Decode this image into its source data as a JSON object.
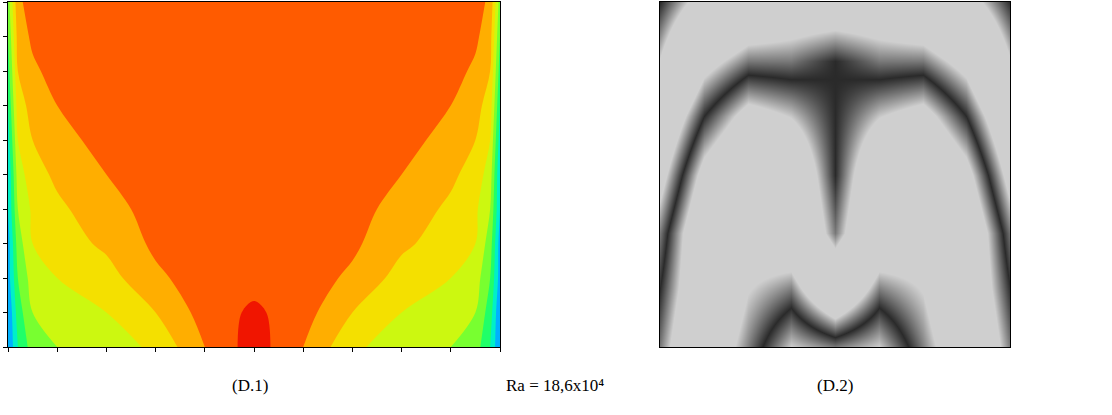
{
  "caption": "Ra = 18,6x10⁴",
  "chart_data": [
    {
      "type": "contour",
      "title": "(D.1)",
      "x": [
        0,
        0.02,
        0.05,
        0.1,
        0.2,
        0.3,
        0.4,
        0.5,
        0.6,
        0.7,
        0.8,
        0.9,
        0.95,
        0.98,
        1
      ],
      "y": [
        0,
        0.1,
        0.2,
        0.3,
        0.4,
        0.5,
        0.6,
        0.7,
        0.8,
        0.9,
        1
      ],
      "z": [
        [
          0.1,
          0.3,
          0.45,
          0.5,
          0.55,
          0.62,
          0.8,
          0.95,
          0.8,
          0.62,
          0.55,
          0.5,
          0.45,
          0.3,
          0.1
        ],
        [
          0.1,
          0.35,
          0.5,
          0.55,
          0.6,
          0.7,
          0.84,
          0.92,
          0.84,
          0.7,
          0.6,
          0.55,
          0.5,
          0.35,
          0.1
        ],
        [
          0.15,
          0.4,
          0.55,
          0.6,
          0.66,
          0.78,
          0.85,
          0.86,
          0.85,
          0.78,
          0.66,
          0.6,
          0.55,
          0.4,
          0.15
        ],
        [
          0.15,
          0.45,
          0.6,
          0.65,
          0.72,
          0.82,
          0.85,
          0.85,
          0.85,
          0.82,
          0.72,
          0.65,
          0.6,
          0.45,
          0.15
        ],
        [
          0.2,
          0.5,
          0.62,
          0.68,
          0.76,
          0.84,
          0.85,
          0.85,
          0.85,
          0.84,
          0.76,
          0.68,
          0.62,
          0.5,
          0.2
        ],
        [
          0.2,
          0.55,
          0.66,
          0.72,
          0.8,
          0.85,
          0.85,
          0.85,
          0.85,
          0.85,
          0.8,
          0.72,
          0.66,
          0.55,
          0.2
        ],
        [
          0.25,
          0.6,
          0.7,
          0.76,
          0.84,
          0.85,
          0.85,
          0.85,
          0.85,
          0.85,
          0.84,
          0.76,
          0.7,
          0.6,
          0.25
        ],
        [
          0.3,
          0.65,
          0.74,
          0.8,
          0.85,
          0.85,
          0.85,
          0.85,
          0.85,
          0.85,
          0.85,
          0.8,
          0.74,
          0.65,
          0.3
        ],
        [
          0.35,
          0.7,
          0.78,
          0.84,
          0.85,
          0.85,
          0.85,
          0.85,
          0.85,
          0.85,
          0.85,
          0.84,
          0.78,
          0.7,
          0.35
        ],
        [
          0.4,
          0.74,
          0.82,
          0.85,
          0.85,
          0.85,
          0.85,
          0.85,
          0.85,
          0.85,
          0.85,
          0.85,
          0.82,
          0.74,
          0.4
        ],
        [
          0.45,
          0.78,
          0.84,
          0.85,
          0.85,
          0.85,
          0.85,
          0.85,
          0.85,
          0.85,
          0.85,
          0.85,
          0.84,
          0.78,
          0.45
        ]
      ],
      "zlim": [
        0,
        1
      ],
      "levels": [
        0,
        0.1,
        0.2,
        0.3,
        0.4,
        0.5,
        0.6,
        0.7,
        0.8,
        0.9,
        1
      ],
      "xlim": [
        0,
        1
      ],
      "ylim": [
        0,
        1
      ],
      "xticks": [
        0,
        0.1,
        0.2,
        0.3,
        0.4,
        0.5,
        0.6,
        0.7,
        0.8,
        0.9,
        1
      ],
      "yticks": [
        0,
        0.1,
        0.2,
        0.3,
        0.4,
        0.5,
        0.6,
        0.7,
        0.8,
        0.9,
        1
      ],
      "tick_labels": false
    },
    {
      "type": "heatmap",
      "title": "(D.2)",
      "x": [
        0,
        0.125,
        0.25,
        0.375,
        0.5,
        0.625,
        0.75,
        0.875,
        1
      ],
      "y": [
        0,
        0.17,
        0.33,
        0.5,
        0.67,
        0.83,
        1
      ],
      "z": [
        [
          1.4,
          0.9,
          0.6,
          0.3,
          0.4,
          0.3,
          0.6,
          0.9,
          1.4
        ],
        [
          1.5,
          1.0,
          0.7,
          0.6,
          1.0,
          0.6,
          0.7,
          1.0,
          1.5
        ],
        [
          1.6,
          1.0,
          0.8,
          0.9,
          1.4,
          0.9,
          0.8,
          1.0,
          1.6
        ],
        [
          1.8,
          1.2,
          0.9,
          1.0,
          1.5,
          1.0,
          0.9,
          1.2,
          1.8
        ],
        [
          2.0,
          1.5,
          1.2,
          1.3,
          1.5,
          1.3,
          1.2,
          1.5,
          2.0
        ],
        [
          2.3,
          1.8,
          1.6,
          1.6,
          1.5,
          1.6,
          1.6,
          1.8,
          2.3
        ],
        [
          2.5,
          2.2,
          2.0,
          1.9,
          1.9,
          1.9,
          2.0,
          2.2,
          2.5
        ]
      ],
      "zlim": [
        0,
        3
      ],
      "xlim": [
        0,
        1
      ],
      "ylim": [
        0,
        1
      ],
      "tick_labels": false
    }
  ]
}
